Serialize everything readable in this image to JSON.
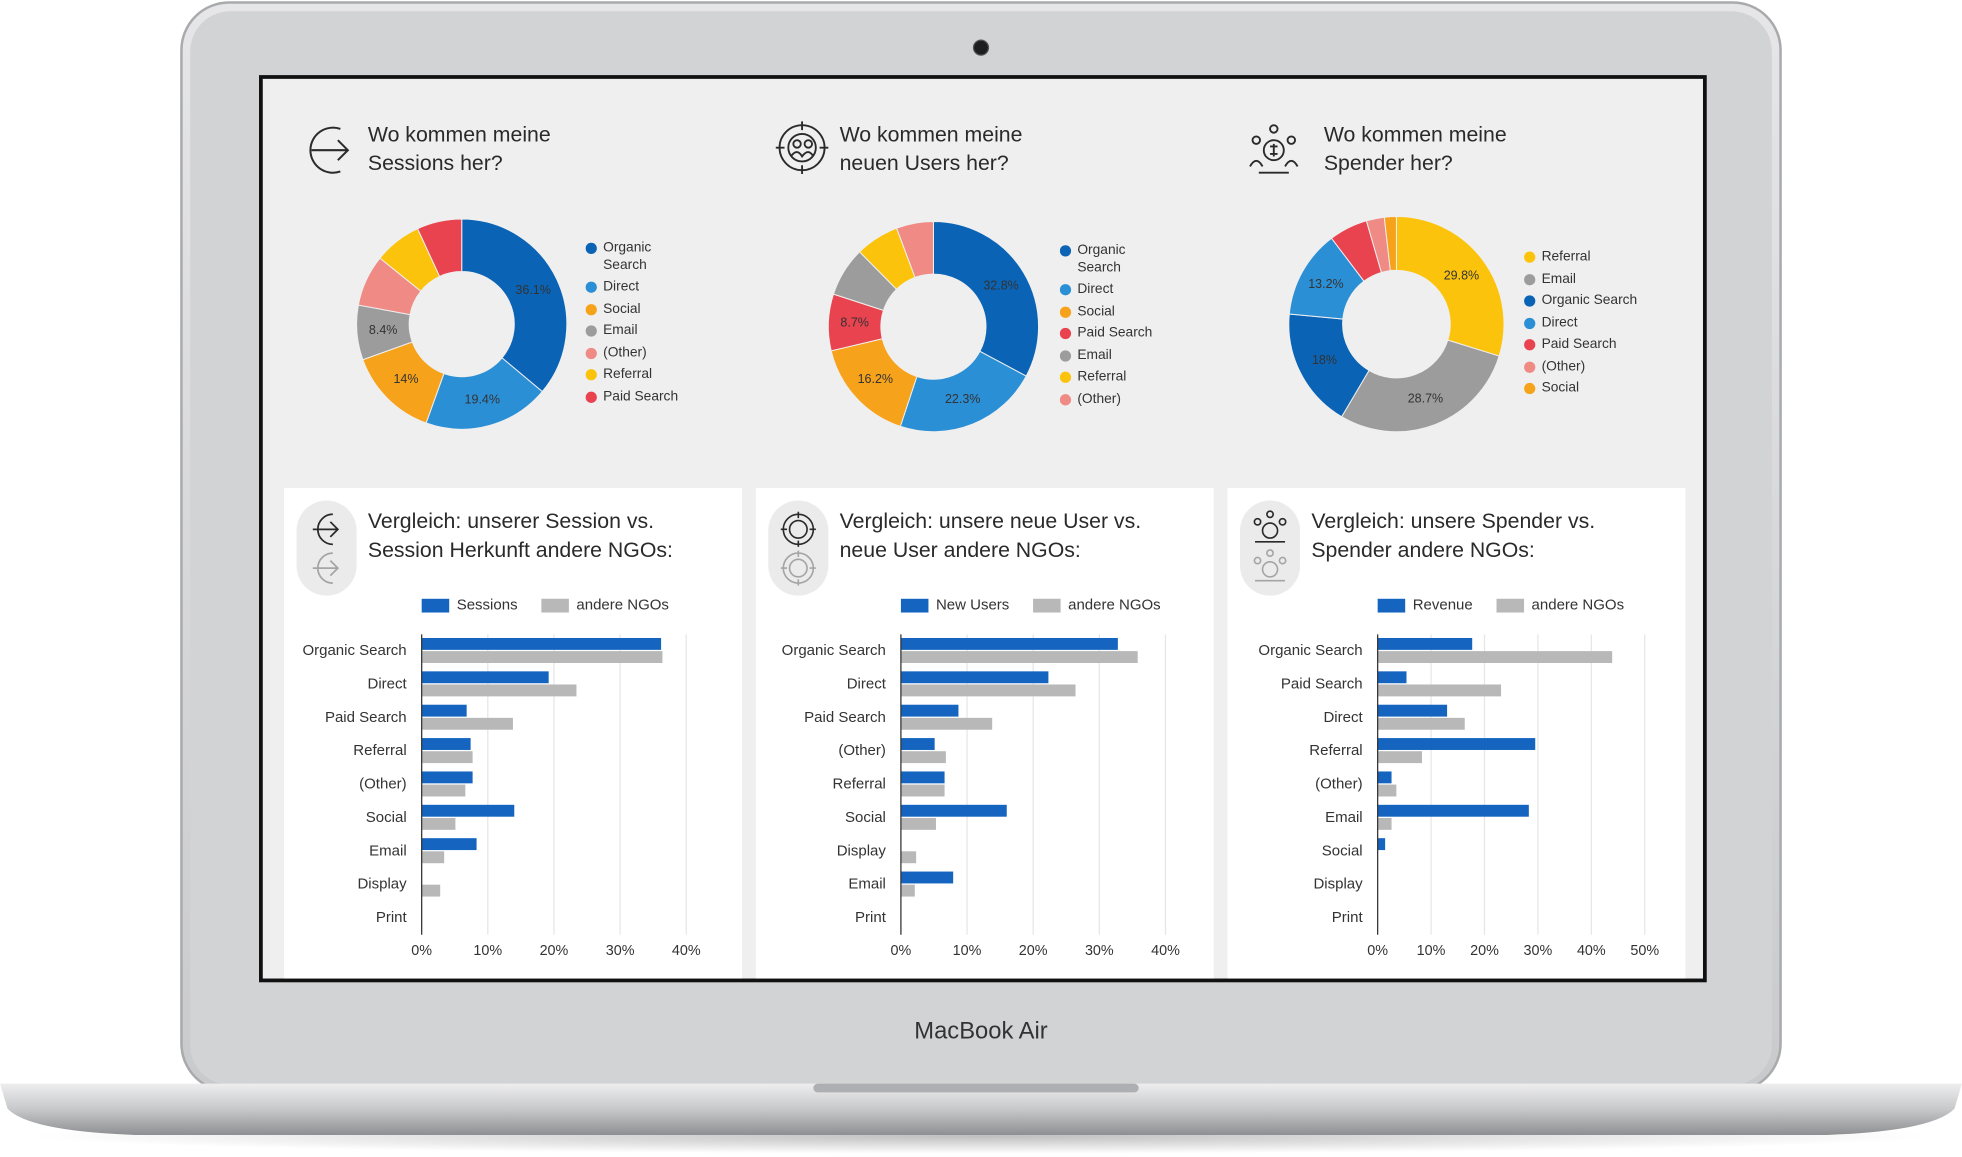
{
  "device_label": "MacBook Air",
  "chart_data": [
    {
      "type": "pie",
      "title": "Wo kommen meine Sessions her?",
      "categories": [
        "Organic Search",
        "Direct",
        "Social",
        "Email",
        "(Other)",
        "Referral",
        "Paid Search"
      ],
      "values": [
        36.1,
        19.4,
        14,
        8.4,
        7.9,
        7.3,
        6.9
      ],
      "value_labels": [
        "36.1%",
        "19.4%",
        "14%",
        "8.4%",
        null,
        null,
        null
      ],
      "colors": [
        "#0a63b5",
        "#2b8fd6",
        "#f7a21b",
        "#9c9c9c",
        "#f08a84",
        "#fcc30c",
        "#e8434f"
      ]
    },
    {
      "type": "pie",
      "title": "Wo kommen meine neuen Users her?",
      "categories": [
        "Organic Search",
        "Direct",
        "Social",
        "Paid Search",
        "Email",
        "Referral",
        "(Other)"
      ],
      "values": [
        32.8,
        22.3,
        16.2,
        8.7,
        7.6,
        6.7,
        5.7
      ],
      "value_labels": [
        "32.8%",
        "22.3%",
        "16.2%",
        "8.7%",
        null,
        null,
        null
      ],
      "colors": [
        "#0a63b5",
        "#2b8fd6",
        "#f7a21b",
        "#e8434f",
        "#9c9c9c",
        "#fcc30c",
        "#f08a84"
      ]
    },
    {
      "type": "pie",
      "title": "Wo kommen meine Spender her?",
      "categories": [
        "Referral",
        "Email",
        "Organic Search",
        "Direct",
        "Paid Search",
        "(Other)",
        "Social"
      ],
      "values": [
        29.8,
        28.7,
        18,
        13.2,
        5.8,
        2.7,
        1.8
      ],
      "value_labels": [
        "29.8%",
        "28.7%",
        "18%",
        "13.2%",
        null,
        null,
        null
      ],
      "colors": [
        "#fcc30c",
        "#9c9c9c",
        "#0a63b5",
        "#2b8fd6",
        "#e8434f",
        "#f08a84",
        "#f7a21b"
      ]
    },
    {
      "type": "bar",
      "title": "Vergleich: unserer Session vs. Session Herkunft andere NGOs:",
      "categories": [
        "Organic Search",
        "Direct",
        "Paid Search",
        "Referral",
        "(Other)",
        "Social",
        "Email",
        "Display",
        "Print"
      ],
      "series": [
        {
          "name": "Sessions",
          "color": "#1565c0",
          "values": [
            36.2,
            19.2,
            6.8,
            7.4,
            7.7,
            14.0,
            8.3,
            0,
            0
          ]
        },
        {
          "name": "andere NGOs",
          "color": "#b8b8b8",
          "values": [
            36.4,
            23.4,
            13.8,
            7.7,
            6.6,
            5.1,
            3.4,
            2.8,
            0
          ]
        }
      ],
      "xlim": [
        0,
        42
      ],
      "xticks": [
        {
          "value": 0,
          "label": "0%"
        },
        {
          "value": 10,
          "label": "10%"
        },
        {
          "value": 20,
          "label": "20%"
        },
        {
          "value": 30,
          "label": "30%"
        },
        {
          "value": 40,
          "label": "40%"
        }
      ],
      "grid": true
    },
    {
      "type": "bar",
      "title": "Vergleich: unsere neue User vs. neue User andere NGOs:",
      "categories": [
        "Organic Search",
        "Direct",
        "Paid Search",
        "(Other)",
        "Referral",
        "Social",
        "Display",
        "Email",
        "Print"
      ],
      "series": [
        {
          "name": "New Users",
          "color": "#1565c0",
          "values": [
            32.8,
            22.3,
            8.7,
            5.1,
            6.6,
            16.0,
            0,
            7.9,
            0
          ]
        },
        {
          "name": "andere NGOs",
          "color": "#b8b8b8",
          "values": [
            35.8,
            26.4,
            13.8,
            6.8,
            6.6,
            5.3,
            2.3,
            2.1,
            0
          ]
        }
      ],
      "xlim": [
        0,
        42
      ],
      "xticks": [
        {
          "value": 0,
          "label": "0%"
        },
        {
          "value": 10,
          "label": "10%"
        },
        {
          "value": 20,
          "label": "20%"
        },
        {
          "value": 30,
          "label": "30%"
        },
        {
          "value": 40,
          "label": "40%"
        }
      ],
      "grid": true
    },
    {
      "type": "bar",
      "title": "Vergleich: unsere Spender vs. Spender andere NGOs:",
      "categories": [
        "Organic Search",
        "Paid Search",
        "Direct",
        "Referral",
        "(Other)",
        "Email",
        "Social",
        "Display",
        "Print"
      ],
      "series": [
        {
          "name": "Revenue",
          "color": "#1565c0",
          "values": [
            17.7,
            5.4,
            13.0,
            29.5,
            2.6,
            28.3,
            1.4,
            0,
            0
          ]
        },
        {
          "name": "andere NGOs",
          "color": "#b8b8b8",
          "values": [
            43.9,
            23.1,
            16.3,
            8.3,
            3.5,
            2.6,
            0,
            0,
            0
          ]
        }
      ],
      "xlim": [
        0,
        52
      ],
      "xticks": [
        {
          "value": 0,
          "label": "0%"
        },
        {
          "value": 10,
          "label": "10%"
        },
        {
          "value": 20,
          "label": "20%"
        },
        {
          "value": 30,
          "label": "30%"
        },
        {
          "value": 40,
          "label": "40%"
        },
        {
          "value": 50,
          "label": "50%"
        }
      ],
      "grid": true
    }
  ]
}
